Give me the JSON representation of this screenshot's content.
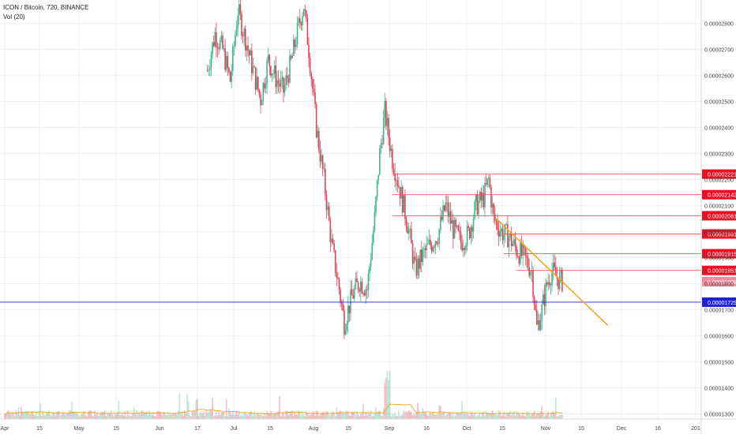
{
  "header": {
    "title": "ICON / Bitcoin, 720, BINANCE",
    "indicator": "Vol (20)"
  },
  "colors": {
    "up": "#3fb68b",
    "down": "#e0445a",
    "grid": "#eceff3",
    "axis_text": "#444444",
    "level_line": "#f05a5a",
    "trend_line": "#f7a21b",
    "current_line": "#2424c8",
    "vol_ma": "#f7a21b",
    "badge_red": "#e81123",
    "badge_pink": "#f38a9a",
    "badge_blue": "#1e22d4"
  },
  "chart_data": {
    "type": "candlestick",
    "title": "ICON / Bitcoin, 720, BINANCE",
    "y_axis": {
      "min": 1.28e-05,
      "max": 2.89e-05,
      "ticks": [
        "0.00001300",
        "0.00001400",
        "0.00001500",
        "0.00001600",
        "0.00001700",
        "0.00001800",
        "0.00001900",
        "0.00002000",
        "0.00002100",
        "0.00002200",
        "0.00002300",
        "0.00002400",
        "0.00002500",
        "0.00002600",
        "0.00002700",
        "0.00002800"
      ]
    },
    "x_axis": {
      "labels": [
        "Apr",
        "15",
        "May",
        "15",
        "Jun",
        "17",
        "Jul",
        "15",
        "Aug",
        "15",
        "Sep",
        "16",
        "Oct",
        "15",
        "Nov",
        "15",
        "Dec",
        "16",
        "201"
      ]
    },
    "price_levels": [
      {
        "label": "0.00002221",
        "value": 2.221e-05,
        "style": "red",
        "line_from_date": "Sep 1"
      },
      {
        "label": "0.00002142",
        "value": 2.142e-05,
        "style": "red",
        "line_from_date": "Sep 1"
      },
      {
        "label": "0.00002061",
        "value": 2.061e-05,
        "style": "red",
        "line_from_date": "Sep 1"
      },
      {
        "label": "0.00001991",
        "value": 1.991e-05,
        "style": "red",
        "line_from_date": "Oct 15"
      },
      {
        "label": "0.00001915",
        "value": 1.915e-05,
        "style": "red",
        "line_from_date": "Oct 15"
      },
      {
        "label": "0.00001851",
        "value": 1.851e-05,
        "style": "red",
        "line_from_date": "Oct 20"
      },
      {
        "label": "0.00001808",
        "value": 1.808e-05,
        "style": "pink"
      },
      {
        "label": "0.00001729",
        "value": 1.729e-05,
        "style": "blue",
        "full_width": true
      }
    ],
    "trend_line": {
      "from": {
        "date": "Oct 12",
        "value": 2.05e-05
      },
      "to": {
        "date": "Nov 25",
        "value": 1.64e-05
      }
    },
    "price_path": [
      [
        "Jun 20",
        2.62e-05
      ],
      [
        "Jun 23",
        2.76e-05
      ],
      [
        "Jun 26",
        2.7e-05
      ],
      [
        "Jun 29",
        2.58e-05
      ],
      [
        "Jul 2",
        2.85e-05
      ],
      [
        "Jul 5",
        2.74e-05
      ],
      [
        "Jul 8",
        2.62e-05
      ],
      [
        "Jul 11",
        2.51e-05
      ],
      [
        "Jul 14",
        2.66e-05
      ],
      [
        "Jul 17",
        2.59e-05
      ],
      [
        "Jul 20",
        2.54e-05
      ],
      [
        "Jul 23",
        2.65e-05
      ],
      [
        "Jul 26",
        2.79e-05
      ],
      [
        "Jul 28",
        2.87e-05
      ],
      [
        "Jul 30",
        2.7e-05
      ],
      [
        "Aug 2",
        2.4e-05
      ],
      [
        "Aug 5",
        2.2e-05
      ],
      [
        "Aug 8",
        1.95e-05
      ],
      [
        "Aug 11",
        1.78e-05
      ],
      [
        "Aug 13",
        1.65e-05
      ],
      [
        "Aug 16",
        1.75e-05
      ],
      [
        "Aug 19",
        1.81e-05
      ],
      [
        "Aug 22",
        1.78e-05
      ],
      [
        "Aug 25",
        2.05e-05
      ],
      [
        "Aug 27",
        2.3e-05
      ],
      [
        "Aug 29",
        2.46e-05
      ],
      [
        "Sep 1",
        2.28e-05
      ],
      [
        "Sep 4",
        2.16e-05
      ],
      [
        "Sep 7",
        2.03e-05
      ],
      [
        "Sep 10",
        1.85e-05
      ],
      [
        "Sep 13",
        1.91e-05
      ],
      [
        "Sep 16",
        1.95e-05
      ],
      [
        "Sep 19",
        1.99e-05
      ],
      [
        "Sep 22",
        2.1e-05
      ],
      [
        "Sep 25",
        2.01e-05
      ],
      [
        "Sep 28",
        1.96e-05
      ],
      [
        "Oct 1",
        1.99e-05
      ],
      [
        "Oct 4",
        2.1e-05
      ],
      [
        "Oct 7",
        2.13e-05
      ],
      [
        "Oct 9",
        2.2e-05
      ],
      [
        "Oct 11",
        2.05e-05
      ],
      [
        "Oct 14",
        2e-05
      ],
      [
        "Oct 17",
        1.98e-05
      ],
      [
        "Oct 20",
        1.93e-05
      ],
      [
        "Oct 23",
        1.9e-05
      ],
      [
        "Oct 26",
        1.85e-05
      ],
      [
        "Oct 28",
        1.63e-05
      ],
      [
        "Oct 30",
        1.7e-05
      ],
      [
        "Nov 1",
        1.8e-05
      ],
      [
        "Nov 3",
        1.85e-05
      ],
      [
        "Nov 5",
        1.82e-05
      ],
      [
        "Nov 7",
        1.81e-05
      ]
    ]
  }
}
